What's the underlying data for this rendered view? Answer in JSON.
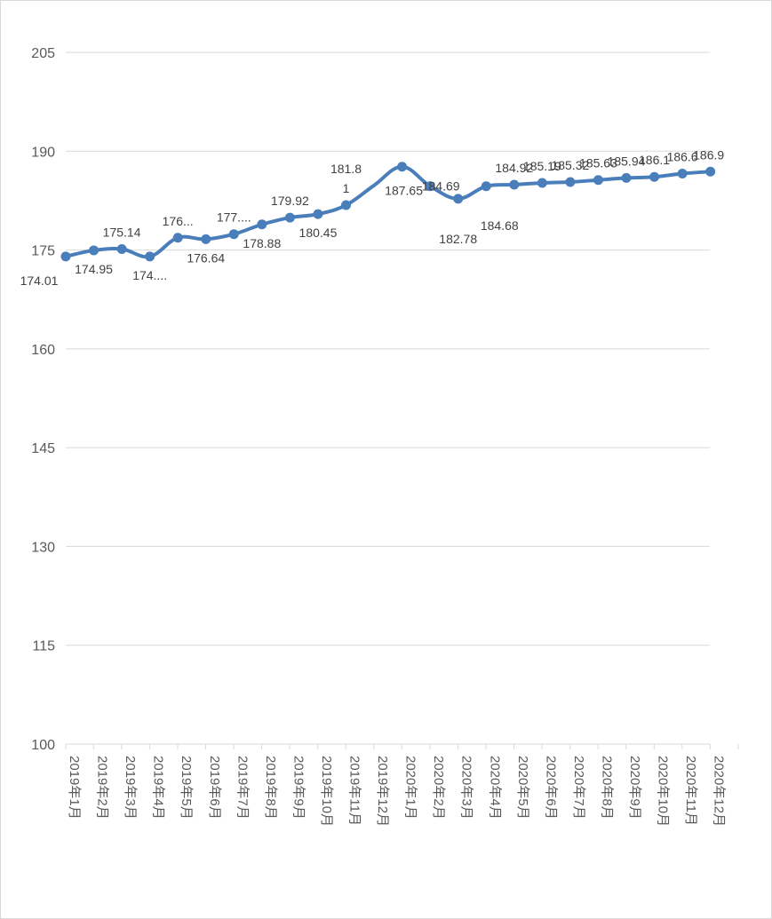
{
  "chart_data": {
    "type": "line",
    "title": "",
    "xlabel": "",
    "ylabel": "",
    "ylim": [
      100,
      205
    ],
    "yticks": [
      100,
      115,
      130,
      145,
      160,
      175,
      190,
      205
    ],
    "grid": true,
    "categories": [
      "2019年1月",
      "2019年2月",
      "2019年3月",
      "2019年4月",
      "2019年5月",
      "2019年6月",
      "2019年7月",
      "2019年8月",
      "2019年9月",
      "2019年10月",
      "2019年11月",
      "2019年12月",
      "2020年1月",
      "2020年2月",
      "2020年3月",
      "2020年4月",
      "2020年5月",
      "2020年6月",
      "2020年7月",
      "2020年8月",
      "2020年9月",
      "2020年10月",
      "2020年11月",
      "2020年12月"
    ],
    "series": [
      {
        "values": [
          174.01,
          174.95,
          175.14,
          174.01,
          176.86,
          176.64,
          177.41,
          178.88,
          179.92,
          180.45,
          181.81,
          184.81,
          187.65,
          184.69,
          182.78,
          184.68,
          184.92,
          185.19,
          185.32,
          185.63,
          185.94,
          186.1,
          186.6,
          186.9
        ],
        "labels": [
          "174.01",
          "174.95",
          "175.14",
          "174....",
          "176...",
          "176.64",
          "177....",
          "178.88",
          "179.92",
          "180.45",
          "181.8\n1",
          "",
          "187.65",
          "184.69",
          "182.78",
          "184.68",
          "184.92",
          "185.19",
          "185.32",
          "185.63",
          "185.94",
          "186.1",
          "186.6",
          "186.9"
        ],
        "color": "#4a7ebb"
      }
    ]
  }
}
